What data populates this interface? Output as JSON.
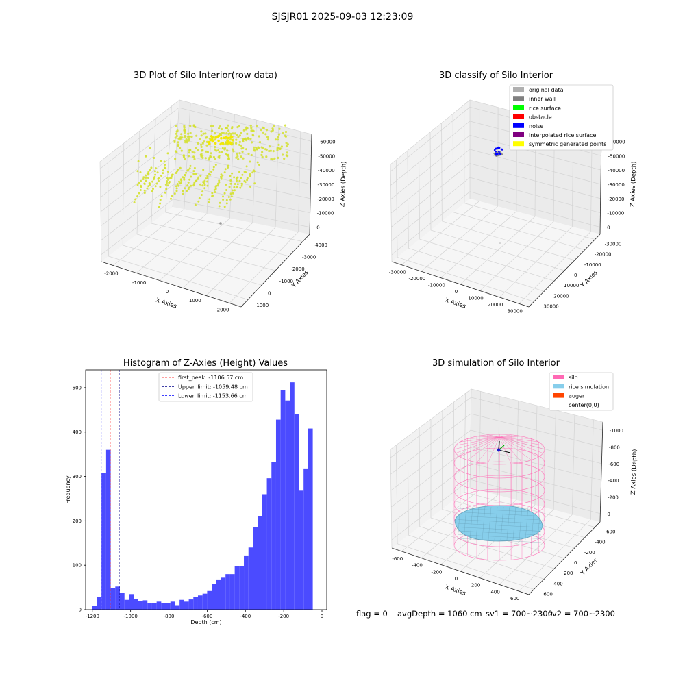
{
  "suptitle": "SJSJR01 2025-09-03 12:23:09",
  "status": {
    "flag": "flag = 0",
    "avg_depth": "avgDepth = 1060 cm",
    "sv1": "sv1 = 700~2300",
    "sv2": "sv2 = 700~2300"
  },
  "chart_data": [
    {
      "type": "scatter",
      "title": "3D Plot of Silo Interior(row data)",
      "xlabel": "X Axies",
      "ylabel": "Y Axies",
      "zlabel": "Z Axies (Depth)",
      "x_ticks": [
        "-2000",
        "-1000",
        "0",
        "1000",
        "2000"
      ],
      "y_ticks": [
        "-4000",
        "-3000",
        "-2000",
        "-1000",
        "0",
        "1000"
      ],
      "z_ticks": [
        "-60000",
        "-50000",
        "-40000",
        "-30000",
        "-20000",
        "-10000",
        "0"
      ],
      "colors": {
        "points": "#d4e12f",
        "outlier": "#999999"
      }
    },
    {
      "type": "scatter",
      "title": "3D classify of Silo Interior",
      "xlabel": "X Axies",
      "ylabel": "Y Axies",
      "zlabel": "Z Axies (Depth)",
      "x_ticks": [
        "-30000",
        "-20000",
        "-10000",
        "0",
        "10000",
        "20000",
        "30000"
      ],
      "y_ticks": [
        "-30000",
        "-20000",
        "-10000",
        "0",
        "10000",
        "20000",
        "30000"
      ],
      "z_ticks": [
        "-60000",
        "-50000",
        "-40000",
        "-30000",
        "-20000",
        "-10000",
        "0"
      ],
      "legend_placement": "top-right",
      "legend": [
        {
          "label": "original data",
          "color": "#b0b0b0"
        },
        {
          "label": "inner wall",
          "color": "#808080"
        },
        {
          "label": "rice surface",
          "color": "#00ff00"
        },
        {
          "label": "obstacle",
          "color": "#ff0000"
        },
        {
          "label": "noise",
          "color": "#0000ff"
        },
        {
          "label": "interpolated rice surface",
          "color": "#800080"
        },
        {
          "label": "symmetric generated points",
          "color": "#ffff00"
        }
      ]
    },
    {
      "type": "bar",
      "title": "Histogram of Z-Axies (Height) Values",
      "xlabel": "Depth (cm)",
      "ylabel": "Frequency",
      "xlim": [
        -1235,
        25
      ],
      "ylim": [
        0,
        540
      ],
      "x_ticks": [
        -1200,
        -1000,
        -800,
        -600,
        -400,
        -200,
        0
      ],
      "y_ticks": [
        0,
        100,
        200,
        300,
        400,
        500
      ],
      "bin_start": -1200,
      "bin_width": 24,
      "values": [
        8,
        28,
        308,
        360,
        48,
        52,
        38,
        22,
        35,
        24,
        20,
        21,
        15,
        14,
        18,
        14,
        15,
        18,
        10,
        22,
        18,
        23,
        28,
        32,
        36,
        42,
        58,
        68,
        72,
        80,
        80,
        98,
        98,
        122,
        140,
        186,
        210,
        260,
        296,
        332,
        428,
        494,
        471,
        512,
        441,
        268,
        318,
        408
      ],
      "bar_color": "#4b4bff",
      "lines": [
        {
          "label": "first_peak: -1106.57 cm",
          "x": -1106.57,
          "color": "#ff0000"
        },
        {
          "label": "Upper_limit: -1059.48 cm",
          "x": -1059.48,
          "color": "#00008b"
        },
        {
          "label": "Lower_limit: -1153.66 cm",
          "x": -1153.66,
          "color": "#0000ff"
        }
      ],
      "legend_placement": "top-center"
    },
    {
      "type": "scatter",
      "title": "3D simulation of Silo Interior",
      "xlabel": "X Axies",
      "ylabel": "Y Axies",
      "zlabel": "Z Axies (Depth)",
      "x_ticks": [
        "-600",
        "-400",
        "-200",
        "0",
        "200",
        "400",
        "600"
      ],
      "y_ticks": [
        "-600",
        "-400",
        "-200",
        "0",
        "200",
        "400",
        "600"
      ],
      "z_ticks": [
        "-1000",
        "-800",
        "-600",
        "-400",
        "-200",
        "0"
      ],
      "legend_placement": "top-right",
      "legend": [
        {
          "label": "silo",
          "color": "#ff69b4"
        },
        {
          "label": "rice simulation",
          "color": "#87ceeb"
        },
        {
          "label": "auger",
          "color": "#ff4500"
        },
        {
          "label": "center(0,0)",
          "color": ""
        }
      ]
    }
  ]
}
